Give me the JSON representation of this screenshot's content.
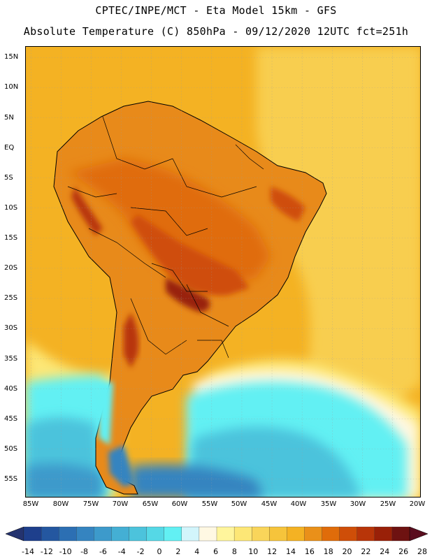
{
  "header": {
    "line1": "CPTEC/INPE/MCT -  Eta Model 15km - GFS",
    "line2": "Absolute Temperature (C) 850hPa - 09/12/2020 12UTC fct=251h"
  },
  "map": {
    "lat_labels": [
      "15N",
      "10N",
      "5N",
      "EQ",
      "5S",
      "10S",
      "15S",
      "20S",
      "25S",
      "30S",
      "35S",
      "40S",
      "45S",
      "50S",
      "55S"
    ],
    "lat_values": [
      15,
      10,
      5,
      0,
      -5,
      -10,
      -15,
      -20,
      -25,
      -30,
      -35,
      -40,
      -45,
      -50,
      -55
    ],
    "lon_labels": [
      "85W",
      "80W",
      "75W",
      "70W",
      "65W",
      "60W",
      "55W",
      "50W",
      "45W",
      "40W",
      "35W",
      "30W",
      "25W",
      "20W"
    ],
    "lon_values": [
      -85,
      -80,
      -75,
      -70,
      -65,
      -60,
      -55,
      -50,
      -45,
      -40,
      -35,
      -30,
      -25,
      -20
    ],
    "ocean_color": "#f4b223",
    "land_color": "#e88a1a"
  },
  "colorbar": {
    "labels": [
      "-14",
      "-12",
      "-10",
      "-8",
      "-6",
      "-4",
      "-2",
      "0",
      "2",
      "4",
      "6",
      "8",
      "10",
      "12",
      "14",
      "16",
      "18",
      "20",
      "22",
      "24",
      "26",
      "28"
    ],
    "colors": [
      "#1e3f8c",
      "#2457a0",
      "#2c6fb3",
      "#3584c0",
      "#3d9acb",
      "#44afd4",
      "#4cc3dc",
      "#55d8e6",
      "#62f0f3",
      "#d2f5fb",
      "#fff8e3",
      "#fff59c",
      "#fde776",
      "#f9d55a",
      "#f6c43b",
      "#f4b223",
      "#ea9019",
      "#e06c0a",
      "#cf4e08",
      "#b83509",
      "#992008",
      "#6e1211"
    ],
    "low_color": "#24336f",
    "high_color": "#5a0d1e"
  }
}
